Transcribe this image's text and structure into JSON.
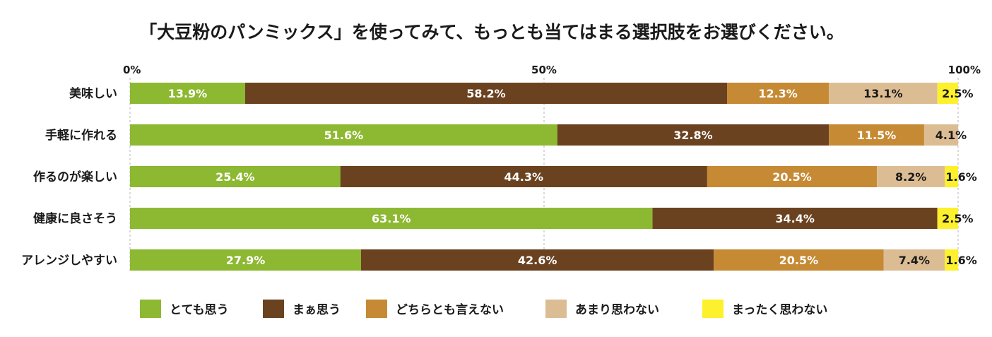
{
  "chart_data": {
    "type": "bar",
    "orientation": "horizontal",
    "stacked": true,
    "title": "「大豆粉のパンミックス」を使ってみて、もっとも当てはまる選択肢をお選びください。",
    "xlim": [
      0,
      100
    ],
    "xticks": [
      "0%",
      "50%",
      "100%"
    ],
    "categories": [
      "美味しい",
      "手軽に作れる",
      "作るのが楽しい",
      "健康に良さそう",
      "アレンジしやすい"
    ],
    "series": [
      {
        "name": "とても思う",
        "color": "#8db832",
        "text_color": "#ffffff",
        "values": [
          13.9,
          51.6,
          25.4,
          63.1,
          27.9
        ]
      },
      {
        "name": "まぁ思う",
        "color": "#6b4220",
        "text_color": "#ffffff",
        "values": [
          58.2,
          32.8,
          44.3,
          34.4,
          42.6
        ]
      },
      {
        "name": "どちらとも言えない",
        "color": "#c68a34",
        "text_color": "#ffffff",
        "values": [
          12.3,
          11.5,
          20.5,
          0,
          20.5
        ]
      },
      {
        "name": "あまり思わない",
        "color": "#dcbd93",
        "text_color": "#1a1a1a",
        "values": [
          13.1,
          4.1,
          8.2,
          0,
          7.4
        ]
      },
      {
        "name": "まったく思わない",
        "color": "#fdf02c",
        "text_color": "#1a1a1a",
        "values": [
          2.5,
          0,
          1.6,
          2.5,
          1.6
        ]
      }
    ],
    "data_labels": [
      [
        "13.9%",
        "58.2%",
        "12.3%",
        "13.1%",
        "2.5%"
      ],
      [
        "51.6%",
        "32.8%",
        "11.5%",
        "4.1%",
        ""
      ],
      [
        "25.4%",
        "44.3%",
        "20.5%",
        "8.2%",
        "1.6%"
      ],
      [
        "63.1%",
        "34.4%",
        "",
        "",
        "2.5%"
      ],
      [
        "27.9%",
        "42.6%",
        "20.5%",
        "7.4%",
        "1.6%"
      ]
    ],
    "legend_position": "bottom",
    "grid": "vertical-dashed"
  }
}
